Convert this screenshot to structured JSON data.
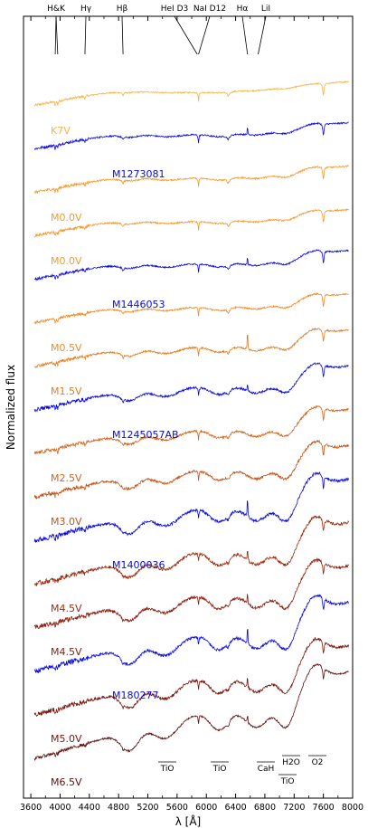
{
  "chart_data": {
    "type": "line",
    "xlabel": "λ [Å]",
    "ylabel": "Normalized flux",
    "x_ticks": [
      "3600",
      "4000",
      "4400",
      "4800",
      "5200",
      "5600",
      "6000",
      "6400",
      "6800",
      "7200",
      "7600",
      "8000"
    ],
    "xlim": [
      3500,
      8000
    ],
    "top_lines": [
      {
        "label": "H&K",
        "x": [
          3934,
          3968
        ]
      },
      {
        "label": "Hγ",
        "x": [
          4340
        ]
      },
      {
        "label": "Hβ",
        "x": [
          4861
        ]
      },
      {
        "label": "HeI D3",
        "x": [
          5876
        ]
      },
      {
        "label": "NaI D12",
        "x": [
          5893
        ]
      },
      {
        "label": "Hα",
        "x": [
          6563
        ]
      },
      {
        "label": "LiI",
        "x": [
          6708
        ]
      }
    ],
    "bottom_bands": [
      {
        "label": "TiO",
        "x": 5450
      },
      {
        "label": "TiO",
        "x": 6150
      },
      {
        "label": "CaH",
        "x": 6920
      },
      {
        "label": "TiO",
        "x": 7100
      },
      {
        "label": "H2O",
        "x": 7000
      },
      {
        "label": "O2",
        "x": 7600
      }
    ],
    "series": [
      {
        "name": "K7V",
        "template": "K7V",
        "color": "#f5b349",
        "offset": 0
      },
      {
        "name": "M1273081",
        "template": "M0.0V",
        "color": "#0a0adc",
        "offset": 0
      },
      {
        "name": "M0.0V",
        "template": "M0.0V",
        "color": "#f39a2e",
        "offset": 0
      },
      {
        "name": "M0.0V",
        "template": "M0.0V",
        "color": "#f39a2e",
        "offset": 1
      },
      {
        "name": "M1446053",
        "template": "M0.5V",
        "color": "#0a0adc",
        "offset": 1
      },
      {
        "name": "M0.5V",
        "template": "M0.5V",
        "color": "#ef8c2a",
        "offset": 1
      },
      {
        "name": "M1.5V",
        "template": "M1.5V",
        "color": "#e37d22",
        "offset": 2
      },
      {
        "name": "M1245057AB",
        "template": "M2.5V",
        "color": "#0a0adc",
        "offset": 2
      },
      {
        "name": "M2.5V",
        "template": "M2.5V",
        "color": "#d5651a",
        "offset": 2
      },
      {
        "name": "M3.0V",
        "template": "M3.0V",
        "color": "#c2541a",
        "offset": 3
      },
      {
        "name": "M1400036",
        "template": "M4.5V",
        "color": "#0a0adc",
        "offset": 3
      },
      {
        "name": "M4.5V",
        "template": "M4.5V",
        "color": "#9b2d10",
        "offset": 3
      },
      {
        "name": "M4.5V",
        "template": "M4.5V",
        "color": "#8a1f10",
        "offset": 4
      },
      {
        "name": "M180277",
        "template": "M5.0V",
        "color": "#0a0adc",
        "offset": 4
      },
      {
        "name": "M5.0V",
        "template": "M5.0V",
        "color": "#7a1810",
        "offset": 4
      },
      {
        "name": "M6.5V",
        "template": "M6.5V",
        "color": "#5e1010",
        "offset": 5
      }
    ]
  }
}
